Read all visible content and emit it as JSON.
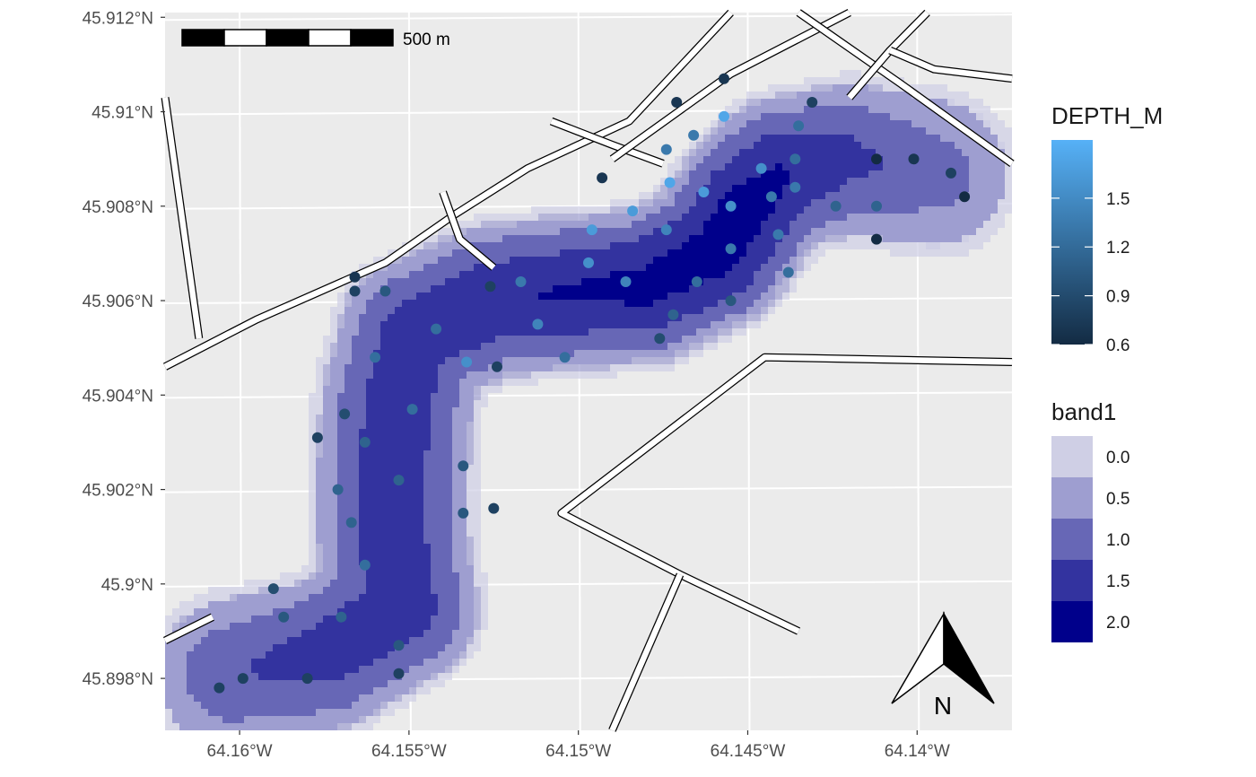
{
  "chart_data": {
    "type": "map",
    "xlim": [
      -64.1622,
      -64.1372
    ],
    "ylim": [
      45.8969,
      45.9121
    ],
    "x_ticks": [
      -64.16,
      -64.155,
      -64.15,
      -64.145,
      -64.14
    ],
    "x_tick_labels": [
      "64.16°W",
      "64.155°W",
      "64.15°W",
      "64.145°W",
      "64.14°W"
    ],
    "y_ticks": [
      45.898,
      45.9,
      45.902,
      45.904,
      45.906,
      45.908,
      45.91,
      45.912
    ],
    "y_tick_labels": [
      "45.898°N",
      "45.9°N",
      "45.902°N",
      "45.904°N",
      "45.906°N",
      "45.908°N",
      "45.91°N",
      "45.912°N"
    ],
    "panel_background": "#ebebeb",
    "grid_color": "#ffffff",
    "scale_bar": {
      "label": "500 m",
      "segments": 5
    },
    "north_arrow": {
      "label": "N"
    },
    "raster_layer": {
      "name": "band1",
      "breaks": [
        "0.0",
        "0.5",
        "1.0",
        "1.5",
        "2.0"
      ],
      "colors": [
        "#cfcfe5",
        "#9e9ed0",
        "#6767b6",
        "#33339f",
        "#00008b"
      ],
      "lake_centerline": [
        [
          -64.1602,
          45.8981,
          1.2
        ],
        [
          -64.1575,
          45.8985,
          1.5
        ],
        [
          -64.1552,
          45.8995,
          1.6
        ],
        [
          -64.1555,
          45.901,
          1.6
        ],
        [
          -64.1555,
          45.9025,
          1.6
        ],
        [
          -64.1553,
          45.904,
          1.6
        ],
        [
          -64.1548,
          45.9053,
          1.6
        ],
        [
          -64.1525,
          45.906,
          1.7
        ],
        [
          -64.15,
          45.9062,
          1.8
        ],
        [
          -64.148,
          45.9063,
          1.9
        ],
        [
          -64.146,
          45.907,
          2.0
        ],
        [
          -64.145,
          45.908,
          2.0
        ],
        [
          -64.144,
          45.9087,
          1.8
        ],
        [
          -64.142,
          45.909,
          1.4
        ],
        [
          -64.1395,
          45.9087,
          1.0
        ]
      ]
    },
    "points_layer": {
      "name": "DEPTH_M",
      "color_range": [
        0.6,
        1.8
      ],
      "color_low": "#132b43",
      "color_high": "#56b1f7",
      "legend_breaks": [
        "0.6",
        "0.9",
        "1.2",
        "1.5"
      ],
      "points": [
        [
          -64.1457,
          45.9107,
          0.7
        ],
        [
          -64.1471,
          45.9102,
          0.7
        ],
        [
          -64.1431,
          45.9102,
          0.8
        ],
        [
          -64.1457,
          45.9099,
          1.7
        ],
        [
          -64.1466,
          45.9095,
          1.3
        ],
        [
          -64.1435,
          45.9097,
          1.2
        ],
        [
          -64.1474,
          45.9092,
          1.3
        ],
        [
          -64.1446,
          45.9088,
          1.5
        ],
        [
          -64.1436,
          45.909,
          1.2
        ],
        [
          -64.1412,
          45.909,
          0.6
        ],
        [
          -64.1401,
          45.909,
          0.7
        ],
        [
          -64.139,
          45.9087,
          0.8
        ],
        [
          -64.1493,
          45.9086,
          0.7
        ],
        [
          -64.1473,
          45.9085,
          1.7
        ],
        [
          -64.1436,
          45.9084,
          1.3
        ],
        [
          -64.1463,
          45.9083,
          1.6
        ],
        [
          -64.1443,
          45.9082,
          1.3
        ],
        [
          -64.1386,
          45.9082,
          0.6
        ],
        [
          -64.1424,
          45.908,
          1.1
        ],
        [
          -64.1412,
          45.908,
          1.1
        ],
        [
          -64.1455,
          45.908,
          1.5
        ],
        [
          -64.1484,
          45.9079,
          1.6
        ],
        [
          -64.1496,
          45.9075,
          1.6
        ],
        [
          -64.1474,
          45.9075,
          1.4
        ],
        [
          -64.1441,
          45.9074,
          1.3
        ],
        [
          -64.1412,
          45.9073,
          0.6
        ],
        [
          -64.1455,
          45.9071,
          1.3
        ],
        [
          -64.1497,
          45.9068,
          1.5
        ],
        [
          -64.1438,
          45.9066,
          1.2
        ],
        [
          -64.1566,
          45.9065,
          0.7
        ],
        [
          -64.1465,
          45.9064,
          1.2
        ],
        [
          -64.1486,
          45.9064,
          1.4
        ],
        [
          -64.1517,
          45.9064,
          1.3
        ],
        [
          -64.1526,
          45.9063,
          0.8
        ],
        [
          -64.1566,
          45.9062,
          0.8
        ],
        [
          -64.1557,
          45.9062,
          1.0
        ],
        [
          -64.1455,
          45.906,
          1.0
        ],
        [
          -64.1472,
          45.9057,
          1.1
        ],
        [
          -64.1512,
          45.9055,
          1.4
        ],
        [
          -64.1542,
          45.9054,
          1.2
        ],
        [
          -64.1476,
          45.9052,
          0.9
        ],
        [
          -64.156,
          45.9048,
          1.2
        ],
        [
          -64.1504,
          45.9048,
          1.2
        ],
        [
          -64.1533,
          45.9047,
          1.5
        ],
        [
          -64.1524,
          45.9046,
          0.8
        ],
        [
          -64.1549,
          45.9037,
          1.2
        ],
        [
          -64.1569,
          45.9036,
          0.9
        ],
        [
          -64.1577,
          45.9031,
          0.8
        ],
        [
          -64.1563,
          45.903,
          1.1
        ],
        [
          -64.1534,
          45.9025,
          1.0
        ],
        [
          -64.1553,
          45.9022,
          1.1
        ],
        [
          -64.1571,
          45.902,
          1.1
        ],
        [
          -64.1525,
          45.9016,
          0.8
        ],
        [
          -64.1534,
          45.9015,
          1.0
        ],
        [
          -64.1567,
          45.9013,
          1.1
        ],
        [
          -64.1563,
          45.9004,
          1.2
        ],
        [
          -64.159,
          45.8999,
          0.9
        ],
        [
          -64.1587,
          45.8993,
          1.0
        ],
        [
          -64.157,
          45.8993,
          1.1
        ],
        [
          -64.1553,
          45.8987,
          1.0
        ],
        [
          -64.1606,
          45.8978,
          0.8
        ],
        [
          -64.1599,
          45.898,
          0.8
        ],
        [
          -64.158,
          45.898,
          0.8
        ],
        [
          -64.1553,
          45.8981,
          0.8
        ]
      ]
    },
    "roads": [
      [
        [
          -64.1622,
          45.9046
        ],
        [
          -64.1595,
          45.9056
        ],
        [
          -64.1557,
          45.9068
        ],
        [
          -64.1537,
          45.9078
        ],
        [
          -64.1515,
          45.9088
        ],
        [
          -64.1485,
          45.9098
        ],
        [
          -64.1455,
          45.9121
        ]
      ],
      [
        [
          -64.1622,
          45.9103
        ],
        [
          -64.1612,
          45.9052
        ]
      ],
      [
        [
          -64.154,
          45.9083
        ],
        [
          -64.1535,
          45.9073
        ],
        [
          -64.1525,
          45.9067
        ]
      ],
      [
        [
          -64.1508,
          45.9098
        ],
        [
          -64.149,
          45.9093
        ],
        [
          -64.1475,
          45.9089
        ]
      ],
      [
        [
          -64.149,
          45.909
        ],
        [
          -64.1455,
          45.9108
        ],
        [
          -64.142,
          45.9121
        ]
      ],
      [
        [
          -64.1435,
          45.9121
        ],
        [
          -64.1405,
          45.9106
        ],
        [
          -64.1372,
          45.9089
        ]
      ],
      [
        [
          -64.142,
          45.9103
        ],
        [
          -64.1408,
          45.9113
        ],
        [
          -64.1397,
          45.9121
        ]
      ],
      [
        [
          -64.1408,
          45.9113
        ],
        [
          -64.1395,
          45.9109
        ],
        [
          -64.1372,
          45.9107
        ]
      ],
      [
        [
          -64.1372,
          45.9047
        ],
        [
          -64.1445,
          45.9048
        ],
        [
          -64.1505,
          45.9015
        ],
        [
          -64.147,
          45.9002
        ],
        [
          -64.1435,
          45.899
        ]
      ],
      [
        [
          -64.147,
          45.9002
        ],
        [
          -64.149,
          45.8969
        ]
      ],
      [
        [
          -64.1622,
          45.8988
        ],
        [
          -64.1608,
          45.8993
        ]
      ]
    ]
  }
}
